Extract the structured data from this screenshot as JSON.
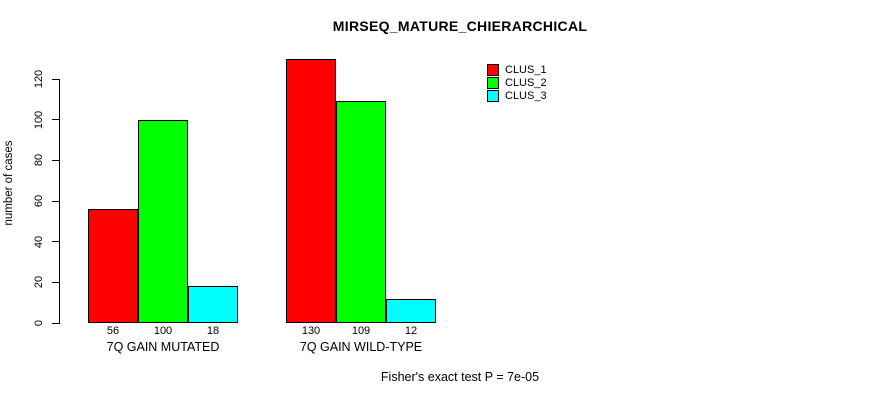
{
  "chart_data": {
    "type": "bar",
    "title": "MIRSEQ_MATURE_CHIERARCHICAL",
    "ylabel": "number of cases",
    "xlabel": "",
    "footer": "Fisher's exact test P = 7e-05",
    "categories": [
      "7Q GAIN MUTATED",
      "7Q GAIN WILD-TYPE"
    ],
    "series": [
      {
        "name": "CLUS_1",
        "color": "#ff0000",
        "values": [
          56,
          130
        ]
      },
      {
        "name": "CLUS_2",
        "color": "#00ff00",
        "values": [
          100,
          109
        ]
      },
      {
        "name": "CLUS_3",
        "color": "#00ffff",
        "values": [
          18,
          12
        ]
      }
    ],
    "yticks": [
      0,
      20,
      40,
      60,
      80,
      100,
      120
    ],
    "ylim": [
      0,
      130
    ],
    "grid": false,
    "bar_value_labels": true,
    "legend_position": "top-right",
    "colors": {
      "axis": "#000000",
      "text": "#000000",
      "background": "#ffffff"
    }
  }
}
